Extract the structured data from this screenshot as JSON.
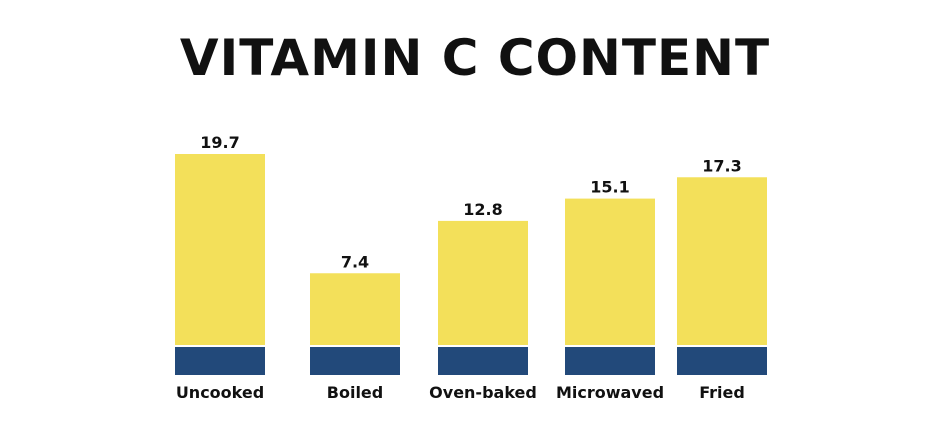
{
  "chart_data": {
    "type": "bar",
    "title": "VITAMIN C CONTENT",
    "categories": [
      "Uncooked",
      "Boiled",
      "Oven-baked",
      "Microwaved",
      "Fried"
    ],
    "values": [
      19.7,
      7.4,
      12.8,
      15.1,
      17.3
    ],
    "value_labels": [
      "19.7",
      "7.4",
      "12.8",
      "15.1",
      "17.3"
    ],
    "xlabel": "",
    "ylabel": "",
    "ylim": [
      0,
      19.7
    ],
    "grid": false,
    "colors": {
      "bar": "#f3e05a",
      "base": "#22497a",
      "text": "#111111"
    }
  }
}
